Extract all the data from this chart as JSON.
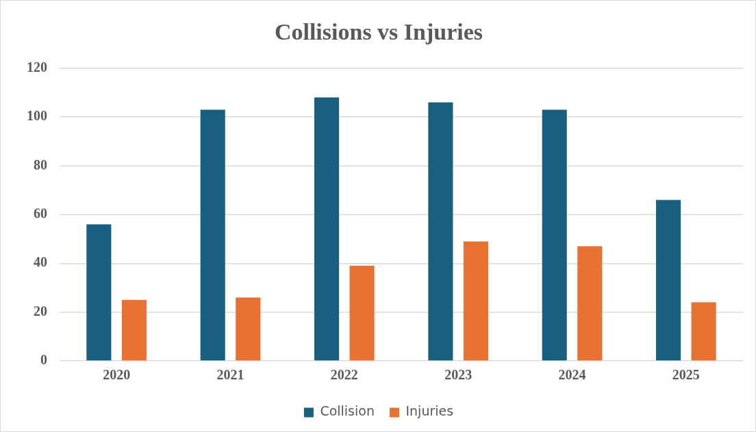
{
  "chart_data": {
    "type": "bar",
    "title": "Collisions vs Injuries",
    "categories": [
      "2020",
      "2021",
      "2022",
      "2023",
      "2024",
      "2025"
    ],
    "series": [
      {
        "name": "Collision",
        "color": "#185f80",
        "values": [
          56,
          103,
          108,
          106,
          103,
          66
        ]
      },
      {
        "name": "Injuries",
        "color": "#e97132",
        "values": [
          25,
          26,
          39,
          49,
          47,
          24
        ]
      }
    ],
    "ylim": [
      0,
      120
    ],
    "yticks": [
      0,
      20,
      40,
      60,
      80,
      100,
      120
    ],
    "grid": "y",
    "legend": "bottom"
  }
}
